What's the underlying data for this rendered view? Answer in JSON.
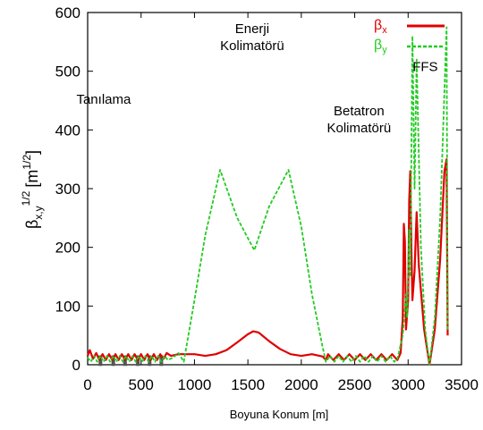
{
  "chart_data": {
    "type": "line",
    "xlabel": "Boyuna Konum [m]",
    "ylabel": "β",
    "ylabel_sub": "x,y",
    "ylabel_sup": "1/2",
    "ylabel_unit": "[m",
    "ylabel_unit_sup": "1/2",
    "ylabel_unit_close": "]",
    "xlim": [
      0,
      3500
    ],
    "ylim": [
      0,
      600
    ],
    "xticks": [
      0,
      500,
      1000,
      1500,
      2000,
      2500,
      3000,
      3500
    ],
    "yticks": [
      0,
      100,
      200,
      300,
      400,
      500,
      600
    ],
    "grid": false,
    "legend_position": "top-right",
    "annotations": [
      {
        "lines": [
          "Enerji",
          "Kolimatörü"
        ],
        "x": 1540,
        "y": 565
      },
      {
        "lines": [
          "Tanılama"
        ],
        "x": 150,
        "y": 445
      },
      {
        "lines": [
          "Betatron",
          "Kolimatörü"
        ],
        "x": 2540,
        "y": 425
      },
      {
        "lines": [
          "FFS"
        ],
        "x": 3160,
        "y": 500
      }
    ],
    "markers": [
      120,
      240,
      350,
      470,
      580,
      690
    ],
    "series": [
      {
        "name": "β",
        "name_sub": "x",
        "color": "#e00000",
        "dash": "solid",
        "points": [
          [
            0,
            15
          ],
          [
            20,
            25
          ],
          [
            50,
            10
          ],
          [
            80,
            20
          ],
          [
            110,
            8
          ],
          [
            140,
            18
          ],
          [
            170,
            8
          ],
          [
            200,
            18
          ],
          [
            230,
            8
          ],
          [
            260,
            18
          ],
          [
            290,
            8
          ],
          [
            320,
            18
          ],
          [
            350,
            8
          ],
          [
            380,
            18
          ],
          [
            410,
            8
          ],
          [
            440,
            18
          ],
          [
            470,
            8
          ],
          [
            500,
            18
          ],
          [
            530,
            8
          ],
          [
            560,
            18
          ],
          [
            590,
            8
          ],
          [
            620,
            18
          ],
          [
            650,
            8
          ],
          [
            680,
            18
          ],
          [
            710,
            10
          ],
          [
            740,
            20
          ],
          [
            780,
            15
          ],
          [
            850,
            18
          ],
          [
            900,
            18
          ],
          [
            1000,
            18
          ],
          [
            1100,
            15
          ],
          [
            1200,
            18
          ],
          [
            1300,
            25
          ],
          [
            1400,
            38
          ],
          [
            1500,
            52
          ],
          [
            1550,
            57
          ],
          [
            1600,
            55
          ],
          [
            1700,
            40
          ],
          [
            1800,
            27
          ],
          [
            1900,
            18
          ],
          [
            2000,
            15
          ],
          [
            2100,
            18
          ],
          [
            2200,
            14
          ],
          [
            2230,
            8
          ],
          [
            2250,
            18
          ],
          [
            2300,
            8
          ],
          [
            2350,
            18
          ],
          [
            2400,
            8
          ],
          [
            2450,
            18
          ],
          [
            2500,
            8
          ],
          [
            2550,
            18
          ],
          [
            2600,
            8
          ],
          [
            2650,
            18
          ],
          [
            2700,
            8
          ],
          [
            2750,
            18
          ],
          [
            2800,
            8
          ],
          [
            2850,
            18
          ],
          [
            2900,
            8
          ],
          [
            2930,
            20
          ],
          [
            2950,
            80
          ],
          [
            2960,
            240
          ],
          [
            2970,
            210
          ],
          [
            2980,
            60
          ],
          [
            3000,
            110
          ],
          [
            3010,
            280
          ],
          [
            3020,
            330
          ],
          [
            3030,
            200
          ],
          [
            3040,
            110
          ],
          [
            3060,
            160
          ],
          [
            3080,
            260
          ],
          [
            3100,
            170
          ],
          [
            3150,
            60
          ],
          [
            3200,
            0
          ],
          [
            3250,
            60
          ],
          [
            3300,
            180
          ],
          [
            3340,
            330
          ],
          [
            3360,
            350
          ],
          [
            3370,
            50
          ]
        ]
      },
      {
        "name": "β",
        "name_sub": "y",
        "color": "#22cc22",
        "dash": "dashed",
        "points": [
          [
            0,
            12
          ],
          [
            30,
            5
          ],
          [
            60,
            15
          ],
          [
            90,
            5
          ],
          [
            120,
            15
          ],
          [
            150,
            5
          ],
          [
            180,
            15
          ],
          [
            210,
            5
          ],
          [
            240,
            15
          ],
          [
            270,
            5
          ],
          [
            300,
            15
          ],
          [
            330,
            5
          ],
          [
            360,
            15
          ],
          [
            390,
            5
          ],
          [
            420,
            15
          ],
          [
            450,
            5
          ],
          [
            480,
            15
          ],
          [
            510,
            5
          ],
          [
            540,
            15
          ],
          [
            570,
            5
          ],
          [
            600,
            15
          ],
          [
            630,
            5
          ],
          [
            660,
            15
          ],
          [
            690,
            5
          ],
          [
            720,
            15
          ],
          [
            750,
            8
          ],
          [
            800,
            12
          ],
          [
            850,
            20
          ],
          [
            900,
            5
          ],
          [
            1000,
            110
          ],
          [
            1100,
            220
          ],
          [
            1240,
            332
          ],
          [
            1400,
            250
          ],
          [
            1560,
            195
          ],
          [
            1700,
            270
          ],
          [
            1880,
            332
          ],
          [
            2000,
            235
          ],
          [
            2100,
            120
          ],
          [
            2200,
            30
          ],
          [
            2230,
            5
          ],
          [
            2270,
            15
          ],
          [
            2310,
            5
          ],
          [
            2350,
            15
          ],
          [
            2390,
            5
          ],
          [
            2430,
            15
          ],
          [
            2470,
            5
          ],
          [
            2510,
            15
          ],
          [
            2550,
            5
          ],
          [
            2590,
            15
          ],
          [
            2630,
            5
          ],
          [
            2670,
            15
          ],
          [
            2710,
            5
          ],
          [
            2750,
            15
          ],
          [
            2790,
            5
          ],
          [
            2830,
            15
          ],
          [
            2870,
            5
          ],
          [
            2900,
            10
          ],
          [
            2950,
            50
          ],
          [
            2980,
            120
          ],
          [
            2990,
            80
          ],
          [
            3010,
            230
          ],
          [
            3020,
            150
          ],
          [
            3040,
            560
          ],
          [
            3060,
            300
          ],
          [
            3080,
            520
          ],
          [
            3120,
            200
          ],
          [
            3160,
            60
          ],
          [
            3200,
            0
          ],
          [
            3250,
            80
          ],
          [
            3300,
            250
          ],
          [
            3360,
            575
          ],
          [
            3370,
            60
          ]
        ]
      }
    ]
  }
}
